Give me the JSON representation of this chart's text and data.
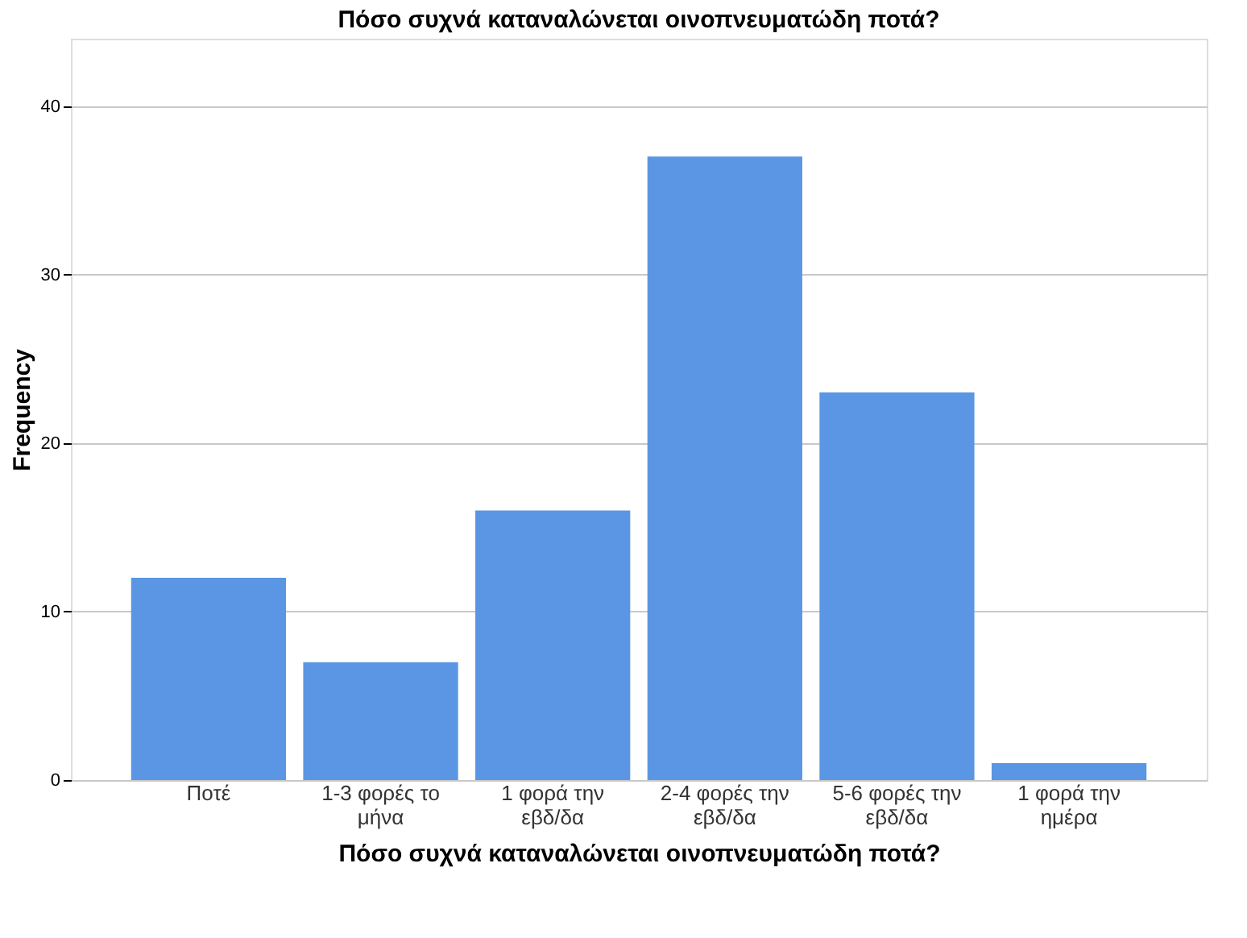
{
  "chart_data": {
    "type": "bar",
    "title": "Πόσο συχνά καταναλώνεται οινοπνευματώδη ποτά?",
    "xlabel": "Πόσο συχνά καταναλώνεται οινοπνευματώδη ποτά?",
    "ylabel": "Frequency",
    "categories": [
      "Ποτέ",
      "1-3 φορές το μήνα",
      "1 φορά την εβδ/δα",
      "2-4 φορές την εβδ/δα",
      "5-6 φορές την εβδ/δα",
      "1 φορά την ημέρα"
    ],
    "values": [
      12,
      7,
      16,
      37,
      23,
      1
    ],
    "color": "#5a96e3",
    "ylim": [
      0,
      44
    ],
    "yticks": [
      0,
      10,
      20,
      30,
      40
    ],
    "grid": "y"
  }
}
